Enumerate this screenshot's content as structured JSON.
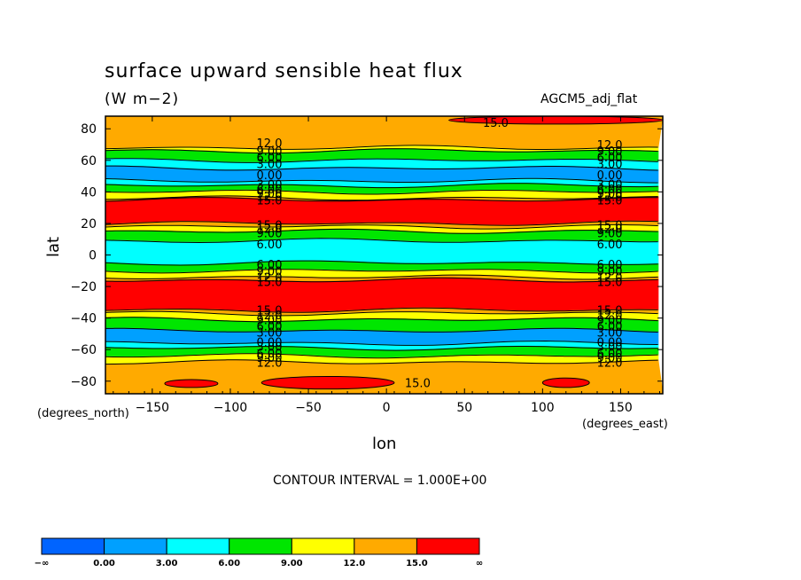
{
  "chart_data": {
    "type": "heatmap",
    "title": "surface upward sensible heat flux",
    "units": "(W m−2)",
    "dataset": "AGCM5_adj_flat",
    "xlabel": "lon",
    "ylabel": "lat",
    "x_coord_label": "(degrees_east)",
    "y_coord_label": "(degrees_north)",
    "contour_interval_text": "CONTOUR INTERVAL = 1.000E+00",
    "xlim": [
      -180,
      177
    ],
    "ylim": [
      -88,
      88
    ],
    "x_ticks": [
      -150,
      -100,
      -50,
      0,
      50,
      100,
      150
    ],
    "x_tick_labels": [
      "−150",
      "−100",
      "−50",
      "0",
      "50",
      "100",
      "150"
    ],
    "y_ticks": [
      80,
      60,
      40,
      20,
      0,
      -20,
      -40,
      -60,
      -80
    ],
    "y_tick_labels": [
      "80",
      "60",
      "40",
      "20",
      "0",
      "−20",
      "−40",
      "−60",
      "−80"
    ],
    "levels": [
      0,
      3,
      6,
      9,
      12,
      15
    ],
    "colorbar_labels": [
      "−∞",
      "0.00",
      "3.00",
      "6.00",
      "9.00",
      "12.0",
      "15.0",
      "∞"
    ],
    "colors": [
      "#0064ff",
      "#00a0ff",
      "#00ffff",
      "#00e600",
      "#ffff00",
      "#ffaa00",
      "#ff0000"
    ],
    "zonal_bands": [
      {
        "lat_from": 88,
        "lat_to": 68,
        "value": 13.5
      },
      {
        "lat_from": 68,
        "lat_to": 66,
        "value": 10.5
      },
      {
        "lat_from": 66,
        "lat_to": 60,
        "value": 7.5
      },
      {
        "lat_from": 60,
        "lat_to": 55,
        "value": 4.5
      },
      {
        "lat_from": 55,
        "lat_to": 47,
        "value": 1.5
      },
      {
        "lat_from": 47,
        "lat_to": 44,
        "value": 4.5
      },
      {
        "lat_from": 44,
        "lat_to": 40,
        "value": 7.5
      },
      {
        "lat_from": 40,
        "lat_to": 36,
        "value": 10.5
      },
      {
        "lat_from": 36,
        "lat_to": 35,
        "value": 13.5
      },
      {
        "lat_from": 35,
        "lat_to": 20,
        "value": 16.5
      },
      {
        "lat_from": 20,
        "lat_to": 18,
        "value": 13.5
      },
      {
        "lat_from": 18,
        "lat_to": 15,
        "value": 10.5
      },
      {
        "lat_from": 15,
        "lat_to": 9,
        "value": 7.5
      },
      {
        "lat_from": 9,
        "lat_to": -5,
        "value": 4.5
      },
      {
        "lat_from": -5,
        "lat_to": -10,
        "value": 7.5
      },
      {
        "lat_from": -10,
        "lat_to": -14,
        "value": 10.5
      },
      {
        "lat_from": -14,
        "lat_to": -16,
        "value": 13.5
      },
      {
        "lat_from": -16,
        "lat_to": -35,
        "value": 16.5
      },
      {
        "lat_from": -35,
        "lat_to": -37,
        "value": 13.5
      },
      {
        "lat_from": -37,
        "lat_to": -41,
        "value": 10.5
      },
      {
        "lat_from": -41,
        "lat_to": -48,
        "value": 7.5
      },
      {
        "lat_from": -48,
        "lat_to": -56,
        "value": 1.5
      },
      {
        "lat_from": -56,
        "lat_to": -59,
        "value": 4.5
      },
      {
        "lat_from": -59,
        "lat_to": -64,
        "value": 7.5
      },
      {
        "lat_from": -64,
        "lat_to": -68,
        "value": 10.5
      },
      {
        "lat_from": -68,
        "lat_to": -88,
        "value": 13.5
      }
    ],
    "patches": [
      {
        "lon_from": 40,
        "lon_to": 177,
        "lat_from": 88,
        "lat_to": 83,
        "value": 16.5
      },
      {
        "lon_from": -142,
        "lon_to": -108,
        "lat_from": -79,
        "lat_to": -84,
        "value": 16.5
      },
      {
        "lon_from": -80,
        "lon_to": 5,
        "lat_from": -77,
        "lat_to": -85,
        "value": 16.5
      },
      {
        "lon_from": 100,
        "lon_to": 130,
        "lat_from": -78,
        "lat_to": -84,
        "value": 16.5
      }
    ],
    "contour_labels": [
      {
        "text": "12.0",
        "lon": -75,
        "lat": 71
      },
      {
        "text": "9.00",
        "lon": -75,
        "lat": 66
      },
      {
        "text": "6.00",
        "lon": -75,
        "lat": 62
      },
      {
        "text": "3.00",
        "lon": -75,
        "lat": 58
      },
      {
        "text": "0.00",
        "lon": -75,
        "lat": 51
      },
      {
        "text": "3.00",
        "lon": -75,
        "lat": 45
      },
      {
        "text": "6.00",
        "lon": -75,
        "lat": 42
      },
      {
        "text": "9.00",
        "lon": -75,
        "lat": 39
      },
      {
        "text": "12.0",
        "lon": -75,
        "lat": 37
      },
      {
        "text": "15.0",
        "lon": -75,
        "lat": 35
      },
      {
        "text": "15.0",
        "lon": -75,
        "lat": 19
      },
      {
        "text": "12.0",
        "lon": -75,
        "lat": 17
      },
      {
        "text": "9.00",
        "lon": -75,
        "lat": 14
      },
      {
        "text": "6.00",
        "lon": -75,
        "lat": 7
      },
      {
        "text": "6.00",
        "lon": -75,
        "lat": -6
      },
      {
        "text": "9.00",
        "lon": -75,
        "lat": -10
      },
      {
        "text": "12.0",
        "lon": -75,
        "lat": -14
      },
      {
        "text": "15.0",
        "lon": -75,
        "lat": -17
      },
      {
        "text": "15.0",
        "lon": -75,
        "lat": -35
      },
      {
        "text": "12.0",
        "lon": -75,
        "lat": -38
      },
      {
        "text": "9.00",
        "lon": -75,
        "lat": -41
      },
      {
        "text": "6.00",
        "lon": -75,
        "lat": -45
      },
      {
        "text": "3.00",
        "lon": -75,
        "lat": -49
      },
      {
        "text": "0.00",
        "lon": -75,
        "lat": -55
      },
      {
        "text": "3.00",
        "lon": -75,
        "lat": -58
      },
      {
        "text": "6.00",
        "lon": -75,
        "lat": -62
      },
      {
        "text": "9.00",
        "lon": -75,
        "lat": -65
      },
      {
        "text": "12.0",
        "lon": -75,
        "lat": -68
      },
      {
        "text": "15.0",
        "lon": 70,
        "lat": 84
      },
      {
        "text": "15.0",
        "lon": 20,
        "lat": -81
      },
      {
        "text": "12.0",
        "lon": 143,
        "lat": 70
      },
      {
        "text": "9.00",
        "lon": 143,
        "lat": 66
      },
      {
        "text": "6.00",
        "lon": 143,
        "lat": 62
      },
      {
        "text": "3.00",
        "lon": 143,
        "lat": 58
      },
      {
        "text": "0.00",
        "lon": 143,
        "lat": 51
      },
      {
        "text": "3.00",
        "lon": 143,
        "lat": 45
      },
      {
        "text": "6.00",
        "lon": 143,
        "lat": 42
      },
      {
        "text": "9.00",
        "lon": 143,
        "lat": 39
      },
      {
        "text": "12.0",
        "lon": 143,
        "lat": 37
      },
      {
        "text": "15.0",
        "lon": 143,
        "lat": 35
      },
      {
        "text": "15.0",
        "lon": 143,
        "lat": 19
      },
      {
        "text": "12.0",
        "lon": 143,
        "lat": 17
      },
      {
        "text": "9.00",
        "lon": 143,
        "lat": 14
      },
      {
        "text": "6.00",
        "lon": 143,
        "lat": 7
      },
      {
        "text": "6.00",
        "lon": 143,
        "lat": -6
      },
      {
        "text": "9.00",
        "lon": 143,
        "lat": -10
      },
      {
        "text": "12.0",
        "lon": 143,
        "lat": -14
      },
      {
        "text": "15.0",
        "lon": 143,
        "lat": -17
      },
      {
        "text": "15.0",
        "lon": 143,
        "lat": -35
      },
      {
        "text": "12.0",
        "lon": 143,
        "lat": -38
      },
      {
        "text": "9.00",
        "lon": 143,
        "lat": -41
      },
      {
        "text": "6.00",
        "lon": 143,
        "lat": -45
      },
      {
        "text": "3.00",
        "lon": 143,
        "lat": -49
      },
      {
        "text": "0.00",
        "lon": 143,
        "lat": -55
      },
      {
        "text": "3.00",
        "lon": 143,
        "lat": -58
      },
      {
        "text": "6.00",
        "lon": 143,
        "lat": -62
      },
      {
        "text": "9.00",
        "lon": 143,
        "lat": -65
      },
      {
        "text": "12.0",
        "lon": 143,
        "lat": -68
      }
    ]
  }
}
